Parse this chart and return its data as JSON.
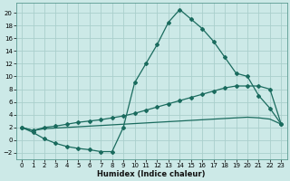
{
  "xlabel": "Humidex (Indice chaleur)",
  "bg_color": "#cce9e7",
  "grid_color": "#aacfcc",
  "line_color": "#1a6b5e",
  "xlim": [
    -0.5,
    23.5
  ],
  "ylim": [
    -3.0,
    21.5
  ],
  "xticks": [
    0,
    1,
    2,
    3,
    4,
    5,
    6,
    7,
    8,
    9,
    10,
    11,
    12,
    13,
    14,
    15,
    16,
    17,
    18,
    19,
    20,
    21,
    22,
    23
  ],
  "yticks": [
    -2,
    0,
    2,
    4,
    6,
    8,
    10,
    12,
    14,
    16,
    18,
    20
  ],
  "line1_x": [
    0,
    1,
    2,
    3,
    4,
    5,
    6,
    7,
    8,
    9,
    10,
    11,
    12,
    13,
    14,
    15,
    16,
    17,
    18,
    19,
    20,
    21,
    22,
    23
  ],
  "line1_y": [
    2.0,
    1.2,
    0.2,
    -0.5,
    -1.0,
    -1.3,
    -1.5,
    -1.8,
    -1.8,
    2.0,
    9.0,
    12.0,
    15.0,
    18.5,
    20.5,
    19.0,
    17.5,
    15.5,
    13.0,
    10.5,
    10.0,
    7.0,
    5.0,
    2.5
  ],
  "line2_x": [
    0,
    1,
    2,
    3,
    4,
    5,
    6,
    7,
    8,
    9,
    10,
    11,
    12,
    13,
    14,
    15,
    16,
    17,
    18,
    19,
    20,
    21,
    22,
    23
  ],
  "line2_y": [
    2.0,
    1.5,
    2.0,
    2.2,
    2.5,
    2.8,
    3.0,
    3.2,
    3.5,
    3.8,
    4.2,
    4.7,
    5.2,
    5.7,
    6.2,
    6.7,
    7.2,
    7.7,
    8.2,
    8.5,
    8.5,
    8.5,
    8.0,
    2.5
  ],
  "line3_x": [
    0,
    1,
    2,
    3,
    4,
    5,
    6,
    7,
    8,
    9,
    10,
    11,
    12,
    13,
    14,
    15,
    16,
    17,
    18,
    19,
    20,
    21,
    22,
    23
  ],
  "line3_y": [
    2.0,
    1.5,
    1.8,
    1.9,
    2.0,
    2.1,
    2.2,
    2.3,
    2.4,
    2.5,
    2.6,
    2.7,
    2.8,
    2.9,
    3.0,
    3.1,
    3.2,
    3.3,
    3.4,
    3.5,
    3.6,
    3.5,
    3.3,
    2.5
  ]
}
